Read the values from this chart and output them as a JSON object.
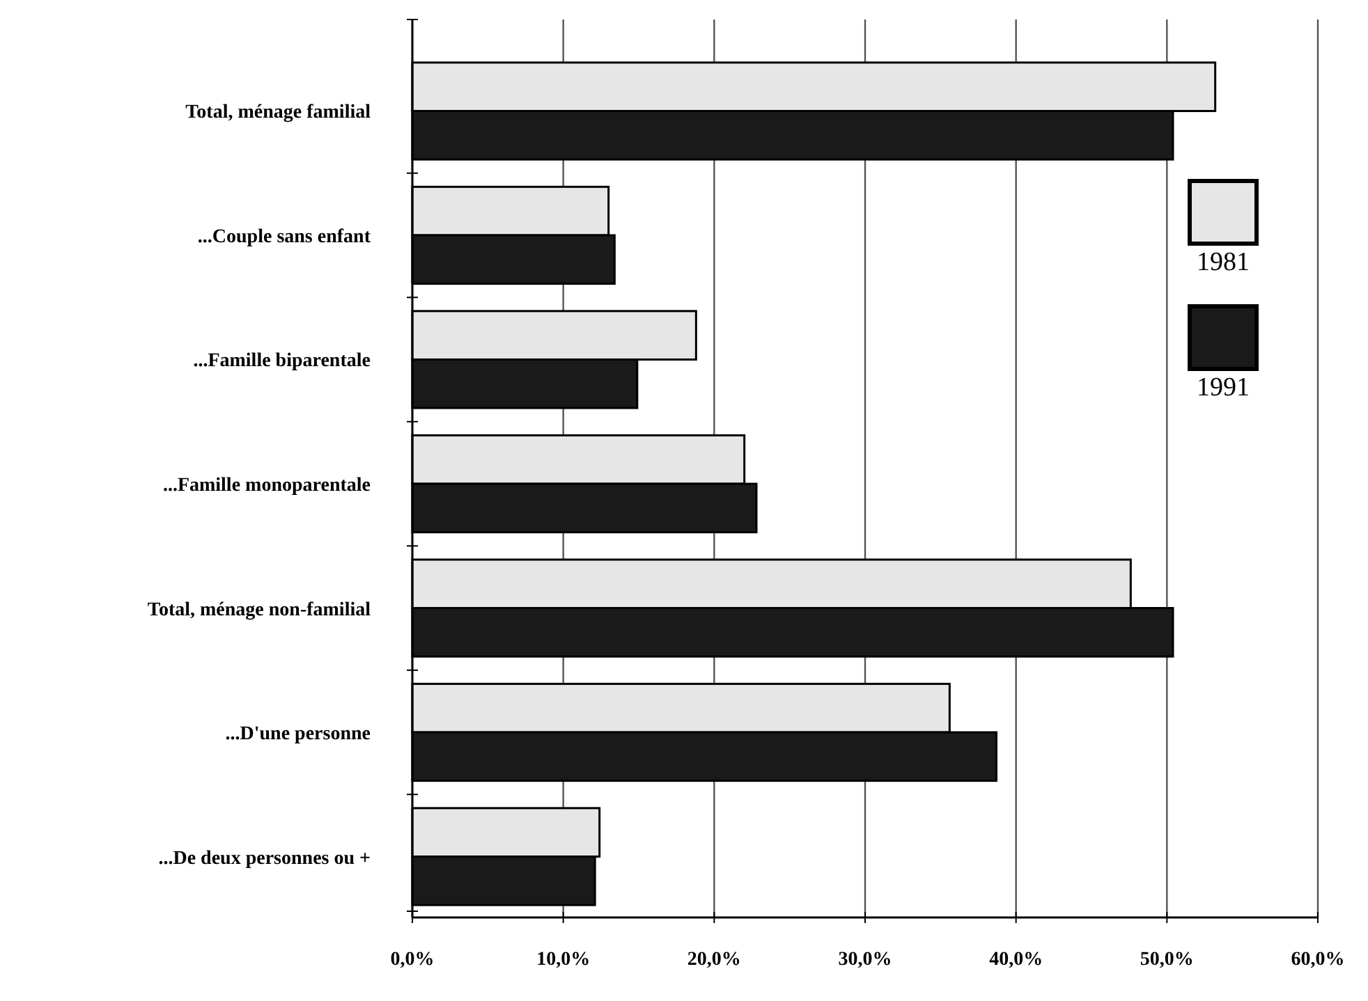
{
  "chart_data": {
    "type": "bar",
    "orientation": "horizontal",
    "categories": [
      "Total, ménage familial",
      "...Couple sans enfant",
      "...Famille biparentale",
      "...Famille monoparentale",
      "Total, ménage non-familial",
      "...D'une personne",
      "...De deux personnes ou +"
    ],
    "series": [
      {
        "name": "1981",
        "color": "#e6e6e6",
        "values": [
          53.2,
          13.0,
          18.8,
          22.0,
          47.6,
          35.6,
          12.4
        ]
      },
      {
        "name": "1991",
        "color": "#1a1a1a",
        "values": [
          50.4,
          13.4,
          14.9,
          22.8,
          50.4,
          38.7,
          12.1
        ]
      }
    ],
    "xlim": [
      0,
      60
    ],
    "xticks": [
      {
        "value": 0,
        "label": "0,0%"
      },
      {
        "value": 10,
        "label": "10,0%"
      },
      {
        "value": 20,
        "label": "20,0%"
      },
      {
        "value": 30,
        "label": "30,0%"
      },
      {
        "value": 40,
        "label": "40,0%"
      },
      {
        "value": 50,
        "label": "50,0%"
      },
      {
        "value": 60,
        "label": "60,0%"
      }
    ],
    "grid": "x",
    "legend": "right"
  }
}
